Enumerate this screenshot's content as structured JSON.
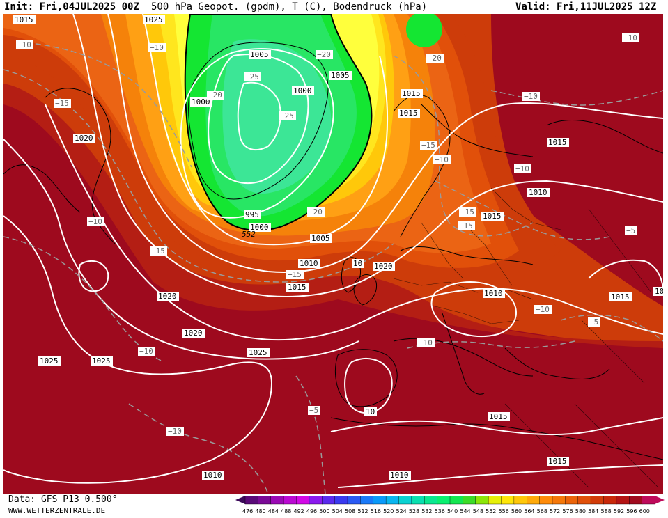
{
  "header": {
    "init": "Init: Fri,04JUL2025 00Z",
    "title": "500 hPa Geopot. (gpdm), T (C), Bodendruck (hPa)",
    "valid": "Valid: Fri,11JUL2025 12Z"
  },
  "footer": {
    "data_source": "Data: GFS P13 0.500°",
    "website": "WWW.WETTERZENTRALE.DE"
  },
  "colorbar": {
    "ticks": [
      "476",
      "480",
      "484",
      "488",
      "492",
      "496",
      "500",
      "504",
      "508",
      "512",
      "516",
      "520",
      "524",
      "528",
      "532",
      "536",
      "540",
      "544",
      "548",
      "552",
      "556",
      "560",
      "564",
      "568",
      "572",
      "576",
      "580",
      "584",
      "588",
      "592",
      "596",
      "600"
    ],
    "colors": [
      "#3c0a5a",
      "#5a0a78",
      "#7a0a96",
      "#9a0ab4",
      "#ba0ad2",
      "#d20ae6",
      "#8a1aee",
      "#5a2aee",
      "#3a3af0",
      "#2a5af4",
      "#1a7af8",
      "#0a9afa",
      "#0ab6f0",
      "#0ad2d2",
      "#0ae0b0",
      "#0ae890",
      "#0af070",
      "#14e650",
      "#3cdc28",
      "#8ce60a",
      "#e6f00a",
      "#ffe60a",
      "#ffc80a",
      "#ffaa0a",
      "#ff8c0a",
      "#f5780a",
      "#eb640a",
      "#e1500a",
      "#d23c0a",
      "#c8280a",
      "#b41414",
      "#a00a1e",
      "#be0a5a"
    ]
  },
  "map": {
    "shading_colors": {
      "h600": "#c8145a",
      "h592": "#9e0a1e",
      "h588": "#b41e14",
      "h584": "#cd3c0a",
      "h580": "#e1500a",
      "h576": "#eb6414",
      "h572": "#f5820a",
      "h568": "#ffa014",
      "h564": "#ffc80a",
      "h560": "#ffe61e",
      "h556": "#ffff3c",
      "h552": "#14e632",
      "h548": "#28e664",
      "h540": "#3ce696"
    },
    "pressure_labels": [
      {
        "text": "1015"
      },
      {
        "text": "1005"
      },
      {
        "text": "1005"
      },
      {
        "text": "1000"
      },
      {
        "text": "1000"
      },
      {
        "text": "1015"
      },
      {
        "text": "1015"
      },
      {
        "text": "1020"
      },
      {
        "text": "995"
      },
      {
        "text": "1000"
      },
      {
        "text": "1005"
      },
      {
        "text": "1010"
      },
      {
        "text": "1020"
      },
      {
        "text": "10"
      },
      {
        "text": "1015"
      },
      {
        "text": "1020"
      },
      {
        "text": "1020"
      },
      {
        "text": "1025"
      },
      {
        "text": "1025"
      },
      {
        "text": "1025"
      },
      {
        "text": "1015"
      },
      {
        "text": "1010"
      },
      {
        "text": "1015"
      },
      {
        "text": "1010"
      },
      {
        "text": "1015"
      },
      {
        "text": "1005"
      },
      {
        "text": "10"
      },
      {
        "text": "1015"
      },
      {
        "text": "1015"
      },
      {
        "text": "1010"
      },
      {
        "text": "1010"
      },
      {
        "text": "1025"
      }
    ],
    "temperature_labels": [
      {
        "text": "−10"
      },
      {
        "text": "−10"
      },
      {
        "text": "−20"
      },
      {
        "text": "−25"
      },
      {
        "text": "−20"
      },
      {
        "text": "−15"
      },
      {
        "text": "−25"
      },
      {
        "text": "−20"
      },
      {
        "text": "−20"
      },
      {
        "text": "−10"
      },
      {
        "text": "−15"
      },
      {
        "text": "−15"
      },
      {
        "text": "−15"
      },
      {
        "text": "−10"
      },
      {
        "text": "−10"
      },
      {
        "text": "−10"
      },
      {
        "text": "−15"
      },
      {
        "text": "−10"
      },
      {
        "text": "−15"
      },
      {
        "text": "−5"
      },
      {
        "text": "−10"
      },
      {
        "text": "−5"
      },
      {
        "text": "−10"
      },
      {
        "text": "−10"
      },
      {
        "text": "−5"
      },
      {
        "text": "−10"
      }
    ],
    "geopotential_label": "552"
  }
}
